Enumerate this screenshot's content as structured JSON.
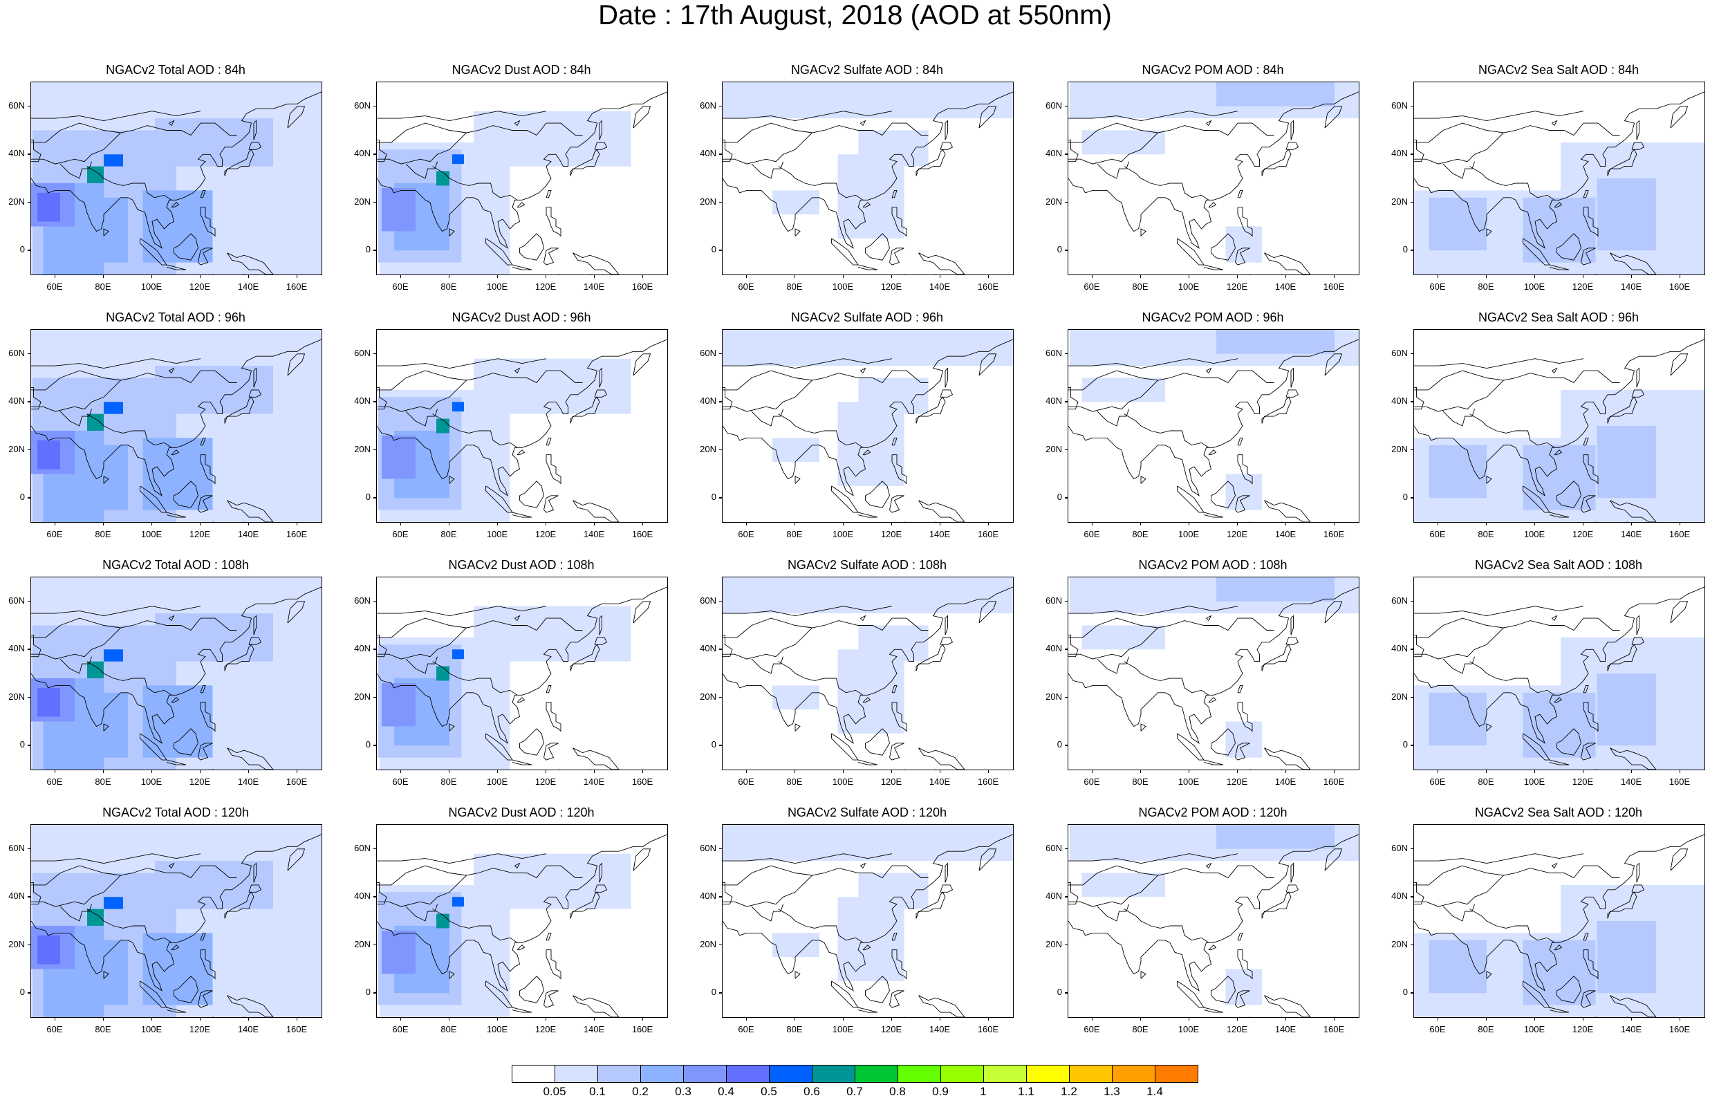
{
  "title": "Date : 17th August, 2018 (AOD at 550nm)",
  "x_tick_labels": [
    "60E",
    "80E",
    "100E",
    "120E",
    "140E",
    "160E"
  ],
  "y_tick_labels": [
    "60N",
    "40N",
    "20N",
    "0"
  ],
  "panels": [
    {
      "title": "NGACv2 Total AOD : 84h",
      "species": "total",
      "hour": 84
    },
    {
      "title": "NGACv2 Dust AOD : 84h",
      "species": "dust",
      "hour": 84
    },
    {
      "title": "NGACv2 Sulfate AOD : 84h",
      "species": "sulfate",
      "hour": 84
    },
    {
      "title": "NGACv2 POM AOD : 84h",
      "species": "pom",
      "hour": 84
    },
    {
      "title": "NGACv2 Sea Salt AOD : 84h",
      "species": "seasalt",
      "hour": 84
    },
    {
      "title": "NGACv2 Total AOD : 96h",
      "species": "total",
      "hour": 96
    },
    {
      "title": "NGACv2 Dust AOD : 96h",
      "species": "dust",
      "hour": 96
    },
    {
      "title": "NGACv2 Sulfate AOD : 96h",
      "species": "sulfate",
      "hour": 96
    },
    {
      "title": "NGACv2 POM AOD : 96h",
      "species": "pom",
      "hour": 96
    },
    {
      "title": "NGACv2 Sea Salt AOD : 96h",
      "species": "seasalt",
      "hour": 96
    },
    {
      "title": "NGACv2 Total AOD : 108h",
      "species": "total",
      "hour": 108
    },
    {
      "title": "NGACv2 Dust AOD : 108h",
      "species": "dust",
      "hour": 108
    },
    {
      "title": "NGACv2 Sulfate AOD : 108h",
      "species": "sulfate",
      "hour": 108
    },
    {
      "title": "NGACv2 POM AOD : 108h",
      "species": "pom",
      "hour": 108
    },
    {
      "title": "NGACv2 Sea Salt AOD : 108h",
      "species": "seasalt",
      "hour": 108
    },
    {
      "title": "NGACv2 Total AOD : 120h",
      "species": "total",
      "hour": 120
    },
    {
      "title": "NGACv2 Dust AOD : 120h",
      "species": "dust",
      "hour": 120
    },
    {
      "title": "NGACv2 Sulfate AOD : 120h",
      "species": "sulfate",
      "hour": 120
    },
    {
      "title": "NGACv2 POM AOD : 120h",
      "species": "pom",
      "hour": 120
    },
    {
      "title": "NGACv2 Sea Salt  AOD : 120h",
      "species": "seasalt",
      "hour": 120
    }
  ],
  "colorbar": {
    "labels": [
      "0.05",
      "0.1",
      "0.2",
      "0.3",
      "0.4",
      "0.5",
      "0.6",
      "0.7",
      "0.8",
      "0.9",
      "1",
      "1.1",
      "1.2",
      "1.3",
      "1.4"
    ],
    "colors": [
      "#ffffff",
      "#d6e2ff",
      "#b5c9ff",
      "#8db2ff",
      "#7f96ff",
      "#6370ff",
      "#0063ff",
      "#009696",
      "#00c633",
      "#63ff00",
      "#96ff00",
      "#c6ff33",
      "#ffff00",
      "#ffc600",
      "#ffa000",
      "#ff7c00",
      "#ff1900"
    ]
  }
}
